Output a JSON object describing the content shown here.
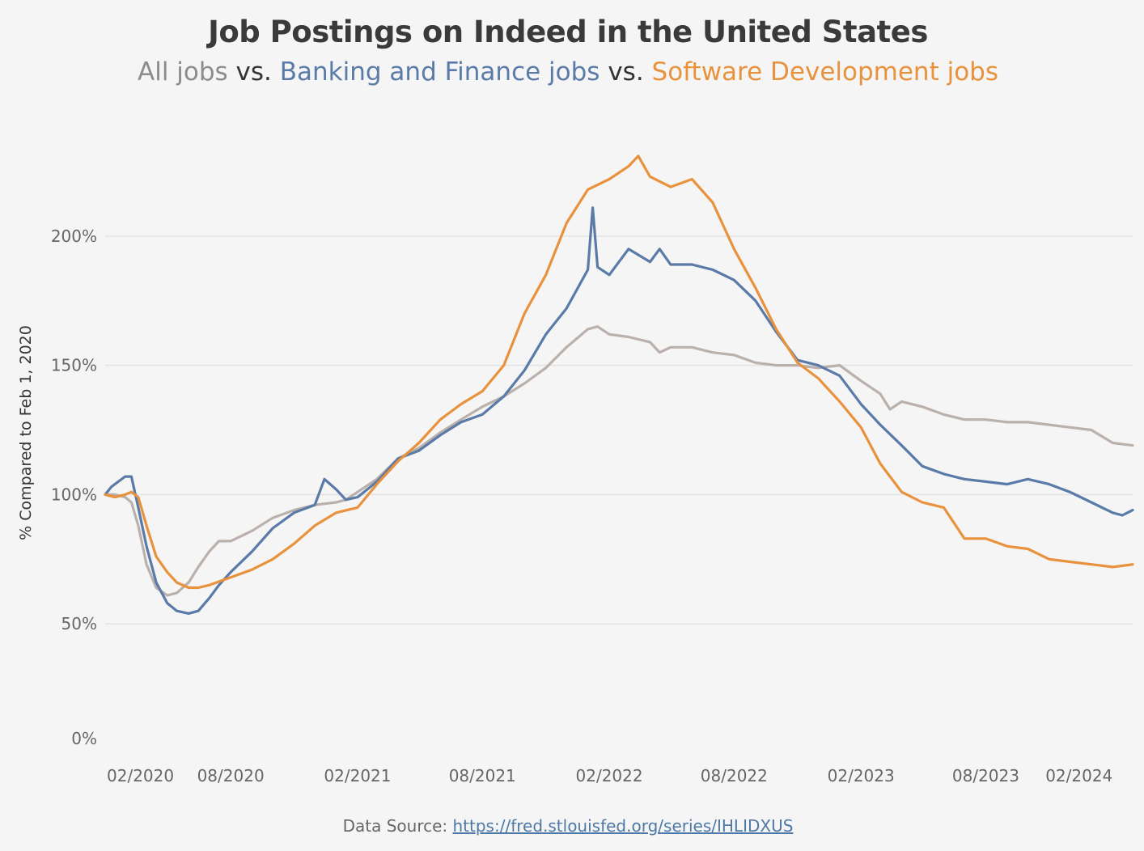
{
  "chart_data": {
    "type": "line",
    "title": "Job Postings on Indeed in the United States",
    "subtitle_parts": [
      {
        "text": "All jobs",
        "color": "#8c8c8c"
      },
      {
        "text": " vs. ",
        "color": "#333333"
      },
      {
        "text": "Banking and Finance jobs",
        "color": "#5a7aa8"
      },
      {
        "text": " vs. ",
        "color": "#333333"
      },
      {
        "text": "Software Development jobs",
        "color": "#e8923d"
      }
    ],
    "ylabel": "% Compared to Feb 1, 2020",
    "xlabel": "",
    "ylim": [
      0,
      235
    ],
    "xlim": [
      "2020-02-01",
      "2024-03-01"
    ],
    "yticks": [
      {
        "value": 0,
        "label": "0%"
      },
      {
        "value": 50,
        "label": "50%"
      },
      {
        "value": 100,
        "label": "100%"
      },
      {
        "value": 150,
        "label": "150%"
      },
      {
        "value": 200,
        "label": "200%"
      }
    ],
    "xticks": [
      {
        "date": "2020-02-01",
        "label": "02/2020"
      },
      {
        "date": "2020-08-01",
        "label": "08/2020"
      },
      {
        "date": "2021-02-01",
        "label": "02/2021"
      },
      {
        "date": "2021-08-01",
        "label": "08/2021"
      },
      {
        "date": "2022-02-01",
        "label": "02/2022"
      },
      {
        "date": "2022-08-01",
        "label": "08/2022"
      },
      {
        "date": "2023-02-01",
        "label": "02/2023"
      },
      {
        "date": "2023-08-01",
        "label": "08/2023"
      },
      {
        "date": "2024-02-01",
        "label": "02/2024"
      }
    ],
    "grid": true,
    "legend": "none",
    "series": [
      {
        "name": "All jobs",
        "color": "#bab0ac",
        "points": [
          [
            "2020-02-01",
            100
          ],
          [
            "2020-02-15",
            100
          ],
          [
            "2020-03-01",
            99
          ],
          [
            "2020-03-10",
            97
          ],
          [
            "2020-03-20",
            88
          ],
          [
            "2020-04-01",
            73
          ],
          [
            "2020-04-15",
            64
          ],
          [
            "2020-05-01",
            61
          ],
          [
            "2020-05-15",
            62
          ],
          [
            "2020-06-01",
            66
          ],
          [
            "2020-06-15",
            72
          ],
          [
            "2020-07-01",
            78
          ],
          [
            "2020-07-15",
            82
          ],
          [
            "2020-08-01",
            82
          ],
          [
            "2020-09-01",
            86
          ],
          [
            "2020-10-01",
            91
          ],
          [
            "2020-11-01",
            94
          ],
          [
            "2020-12-01",
            96
          ],
          [
            "2021-01-01",
            97
          ],
          [
            "2021-01-15",
            98
          ],
          [
            "2021-02-01",
            101
          ],
          [
            "2021-03-01",
            106
          ],
          [
            "2021-04-01",
            114
          ],
          [
            "2021-05-01",
            118
          ],
          [
            "2021-06-01",
            124
          ],
          [
            "2021-07-01",
            129
          ],
          [
            "2021-08-01",
            134
          ],
          [
            "2021-09-01",
            138
          ],
          [
            "2021-10-01",
            143
          ],
          [
            "2021-11-01",
            149
          ],
          [
            "2021-12-01",
            157
          ],
          [
            "2022-01-01",
            164
          ],
          [
            "2022-01-15",
            165
          ],
          [
            "2022-02-01",
            162
          ],
          [
            "2022-03-01",
            161
          ],
          [
            "2022-04-01",
            159
          ],
          [
            "2022-04-15",
            155
          ],
          [
            "2022-05-01",
            157
          ],
          [
            "2022-06-01",
            157
          ],
          [
            "2022-07-01",
            155
          ],
          [
            "2022-08-01",
            154
          ],
          [
            "2022-09-01",
            151
          ],
          [
            "2022-10-01",
            150
          ],
          [
            "2022-11-01",
            150
          ],
          [
            "2022-12-01",
            149
          ],
          [
            "2023-01-01",
            150
          ],
          [
            "2023-02-01",
            144
          ],
          [
            "2023-03-01",
            139
          ],
          [
            "2023-03-15",
            133
          ],
          [
            "2023-04-01",
            136
          ],
          [
            "2023-05-01",
            134
          ],
          [
            "2023-06-01",
            131
          ],
          [
            "2023-07-01",
            129
          ],
          [
            "2023-08-01",
            129
          ],
          [
            "2023-09-01",
            128
          ],
          [
            "2023-10-01",
            128
          ],
          [
            "2023-11-01",
            127
          ],
          [
            "2023-12-01",
            126
          ],
          [
            "2024-01-01",
            125
          ],
          [
            "2024-02-01",
            120
          ],
          [
            "2024-03-01",
            119
          ]
        ]
      },
      {
        "name": "Banking and Finance jobs",
        "color": "#5a7aa8",
        "points": [
          [
            "2020-02-01",
            100
          ],
          [
            "2020-02-10",
            103
          ],
          [
            "2020-02-20",
            105
          ],
          [
            "2020-03-01",
            107
          ],
          [
            "2020-03-10",
            107
          ],
          [
            "2020-03-20",
            95
          ],
          [
            "2020-04-01",
            80
          ],
          [
            "2020-04-15",
            66
          ],
          [
            "2020-05-01",
            58
          ],
          [
            "2020-05-15",
            55
          ],
          [
            "2020-06-01",
            54
          ],
          [
            "2020-06-15",
            55
          ],
          [
            "2020-07-01",
            60
          ],
          [
            "2020-07-15",
            65
          ],
          [
            "2020-08-01",
            70
          ],
          [
            "2020-09-01",
            78
          ],
          [
            "2020-10-01",
            87
          ],
          [
            "2020-11-01",
            93
          ],
          [
            "2020-12-01",
            96
          ],
          [
            "2020-12-15",
            106
          ],
          [
            "2021-01-01",
            102
          ],
          [
            "2021-01-15",
            98
          ],
          [
            "2021-02-01",
            99
          ],
          [
            "2021-03-01",
            105
          ],
          [
            "2021-04-01",
            114
          ],
          [
            "2021-05-01",
            117
          ],
          [
            "2021-06-01",
            123
          ],
          [
            "2021-07-01",
            128
          ],
          [
            "2021-08-01",
            131
          ],
          [
            "2021-09-01",
            138
          ],
          [
            "2021-10-01",
            148
          ],
          [
            "2021-11-01",
            162
          ],
          [
            "2021-12-01",
            172
          ],
          [
            "2022-01-01",
            187
          ],
          [
            "2022-01-08",
            211
          ],
          [
            "2022-01-15",
            188
          ],
          [
            "2022-02-01",
            185
          ],
          [
            "2022-03-01",
            195
          ],
          [
            "2022-04-01",
            190
          ],
          [
            "2022-04-15",
            195
          ],
          [
            "2022-05-01",
            189
          ],
          [
            "2022-06-01",
            189
          ],
          [
            "2022-07-01",
            187
          ],
          [
            "2022-08-01",
            183
          ],
          [
            "2022-09-01",
            175
          ],
          [
            "2022-10-01",
            163
          ],
          [
            "2022-11-01",
            152
          ],
          [
            "2022-12-01",
            150
          ],
          [
            "2023-01-01",
            146
          ],
          [
            "2023-02-01",
            135
          ],
          [
            "2023-03-01",
            127
          ],
          [
            "2023-04-01",
            119
          ],
          [
            "2023-05-01",
            111
          ],
          [
            "2023-06-01",
            108
          ],
          [
            "2023-07-01",
            106
          ],
          [
            "2023-08-01",
            105
          ],
          [
            "2023-09-01",
            104
          ],
          [
            "2023-10-01",
            106
          ],
          [
            "2023-11-01",
            104
          ],
          [
            "2023-12-01",
            101
          ],
          [
            "2024-01-01",
            97
          ],
          [
            "2024-02-01",
            93
          ],
          [
            "2024-02-15",
            92
          ],
          [
            "2024-03-01",
            94
          ]
        ]
      },
      {
        "name": "Software Development jobs",
        "color": "#e8923d",
        "points": [
          [
            "2020-02-01",
            100
          ],
          [
            "2020-02-15",
            99
          ],
          [
            "2020-03-01",
            100
          ],
          [
            "2020-03-10",
            101
          ],
          [
            "2020-03-20",
            99
          ],
          [
            "2020-04-01",
            88
          ],
          [
            "2020-04-15",
            76
          ],
          [
            "2020-05-01",
            70
          ],
          [
            "2020-05-15",
            66
          ],
          [
            "2020-06-01",
            64
          ],
          [
            "2020-06-15",
            64
          ],
          [
            "2020-07-01",
            65
          ],
          [
            "2020-08-01",
            68
          ],
          [
            "2020-09-01",
            71
          ],
          [
            "2020-10-01",
            75
          ],
          [
            "2020-11-01",
            81
          ],
          [
            "2020-12-01",
            88
          ],
          [
            "2021-01-01",
            93
          ],
          [
            "2021-02-01",
            95
          ],
          [
            "2021-03-01",
            104
          ],
          [
            "2021-04-01",
            113
          ],
          [
            "2021-05-01",
            120
          ],
          [
            "2021-06-01",
            129
          ],
          [
            "2021-07-01",
            135
          ],
          [
            "2021-08-01",
            140
          ],
          [
            "2021-09-01",
            150
          ],
          [
            "2021-10-01",
            170
          ],
          [
            "2021-11-01",
            185
          ],
          [
            "2021-12-01",
            205
          ],
          [
            "2022-01-01",
            218
          ],
          [
            "2022-02-01",
            222
          ],
          [
            "2022-03-01",
            227
          ],
          [
            "2022-03-15",
            231
          ],
          [
            "2022-04-01",
            223
          ],
          [
            "2022-05-01",
            219
          ],
          [
            "2022-06-01",
            222
          ],
          [
            "2022-07-01",
            213
          ],
          [
            "2022-08-01",
            195
          ],
          [
            "2022-09-01",
            180
          ],
          [
            "2022-10-01",
            164
          ],
          [
            "2022-11-01",
            151
          ],
          [
            "2022-12-01",
            145
          ],
          [
            "2023-01-01",
            136
          ],
          [
            "2023-02-01",
            126
          ],
          [
            "2023-03-01",
            112
          ],
          [
            "2023-04-01",
            101
          ],
          [
            "2023-05-01",
            97
          ],
          [
            "2023-06-01",
            95
          ],
          [
            "2023-07-01",
            83
          ],
          [
            "2023-08-01",
            83
          ],
          [
            "2023-09-01",
            80
          ],
          [
            "2023-10-01",
            79
          ],
          [
            "2023-11-01",
            75
          ],
          [
            "2023-12-01",
            74
          ],
          [
            "2024-01-01",
            73
          ],
          [
            "2024-02-01",
            72
          ],
          [
            "2024-03-01",
            73
          ]
        ]
      }
    ]
  },
  "source": {
    "label": "Data Source:",
    "link": "https://fred.stlouisfed.org/series/IHLIDXUS"
  }
}
